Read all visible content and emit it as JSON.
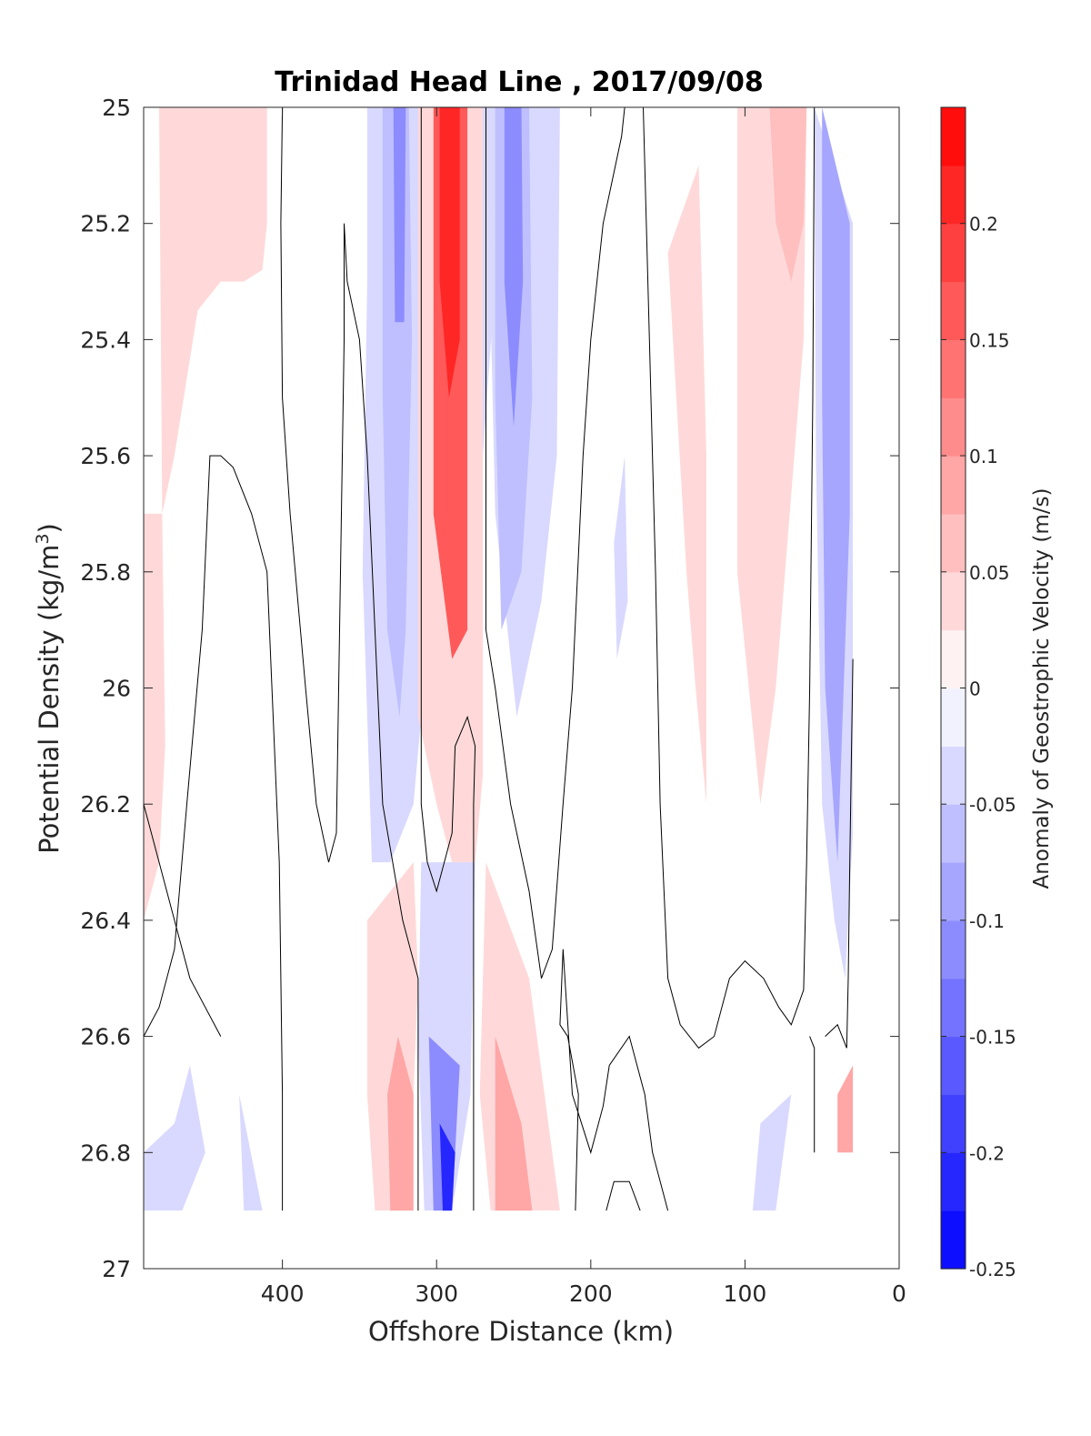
{
  "chart_data": {
    "type": "heatmap",
    "title": "Trinidad Head Line , 2017/09/08",
    "xlabel": "Offshore Distance (km)",
    "ylabel_main": "Potential Density (kg/m",
    "ylabel_sup": "3",
    "ylabel_close": ")",
    "xlim": [
      490,
      0
    ],
    "ylim": [
      25,
      27
    ],
    "x_ticks": [
      "400",
      "300",
      "200",
      "100",
      "0"
    ],
    "x_tick_values": [
      400,
      300,
      200,
      100,
      0
    ],
    "y_ticks": [
      "25",
      "25.2",
      "25.4",
      "25.6",
      "25.8",
      "26",
      "26.2",
      "26.4",
      "26.6",
      "26.8",
      "27"
    ],
    "y_tick_values": [
      25,
      25.2,
      25.4,
      25.6,
      25.8,
      26,
      26.2,
      26.4,
      26.6,
      26.8,
      27
    ],
    "colorbar": {
      "label": "Anomaly of Geostrophic Velocity (m/s)",
      "range": [
        -0.25,
        0.25
      ],
      "ticks": [
        "0.2",
        "0.15",
        "0.1",
        "0.05",
        "0",
        "-0.05",
        "-0.1",
        "-0.15",
        "-0.2",
        "-0.25"
      ],
      "tick_values": [
        0.2,
        0.15,
        0.1,
        0.05,
        0,
        -0.05,
        -0.1,
        -0.15,
        -0.2,
        -0.25
      ],
      "levels": 20,
      "colormap": "blue-white-red",
      "color_min": "#0000ff",
      "color_max": "#ff0000"
    },
    "regions": [
      {
        "value": 0.03,
        "points": [
          [
            480,
            25.0
          ],
          [
            410,
            25.0
          ],
          [
            410,
            25.2
          ],
          [
            413,
            25.28
          ],
          [
            425,
            25.3
          ],
          [
            440,
            25.3
          ],
          [
            455,
            25.35
          ],
          [
            470,
            25.6
          ],
          [
            478,
            25.7
          ]
        ]
      },
      {
        "value": 0.03,
        "points": [
          [
            490,
            25.7
          ],
          [
            478,
            25.7
          ],
          [
            476,
            26.1
          ],
          [
            480,
            26.3
          ],
          [
            490,
            26.4
          ]
        ]
      },
      {
        "value": -0.03,
        "points": [
          [
            345,
            25.0
          ],
          [
            268,
            25.0
          ],
          [
            262,
            25.3
          ],
          [
            270,
            25.6
          ],
          [
            292,
            25.9
          ],
          [
            310,
            26.05
          ],
          [
            315,
            26.2
          ],
          [
            330,
            26.3
          ],
          [
            342,
            26.3
          ],
          [
            348,
            25.8
          ],
          [
            345,
            25.3
          ]
        ]
      },
      {
        "value": -0.07,
        "points": [
          [
            335,
            25.0
          ],
          [
            318,
            25.0
          ],
          [
            316,
            25.4
          ],
          [
            320,
            25.9
          ],
          [
            324,
            26.05
          ],
          [
            332,
            25.9
          ],
          [
            335,
            25.5
          ]
        ]
      },
      {
        "value": -0.12,
        "points": [
          [
            328,
            25.0
          ],
          [
            320,
            25.0
          ],
          [
            321,
            25.37
          ],
          [
            327,
            25.37
          ]
        ]
      },
      {
        "value": 0.05,
        "points": [
          [
            312,
            25.0
          ],
          [
            270,
            25.0
          ],
          [
            270,
            26.15
          ],
          [
            275,
            26.3
          ],
          [
            290,
            26.3
          ],
          [
            300,
            26.2
          ],
          [
            312,
            26.05
          ]
        ]
      },
      {
        "value": 0.15,
        "points": [
          [
            302,
            25.0
          ],
          [
            280,
            25.0
          ],
          [
            280,
            25.9
          ],
          [
            290,
            25.95
          ],
          [
            302,
            25.7
          ]
        ]
      },
      {
        "value": 0.22,
        "points": [
          [
            298,
            25.0
          ],
          [
            285,
            25.0
          ],
          [
            285,
            25.4
          ],
          [
            292,
            25.5
          ],
          [
            298,
            25.3
          ]
        ]
      },
      {
        "value": -0.03,
        "points": [
          [
            268,
            25.0
          ],
          [
            220,
            25.0
          ],
          [
            222,
            25.6
          ],
          [
            232,
            25.85
          ],
          [
            248,
            26.05
          ],
          [
            262,
            25.7
          ]
        ]
      },
      {
        "value": -0.07,
        "points": [
          [
            262,
            25.0
          ],
          [
            240,
            25.0
          ],
          [
            238,
            25.5
          ],
          [
            245,
            25.8
          ],
          [
            258,
            25.9
          ],
          [
            262,
            25.5
          ]
        ]
      },
      {
        "value": -0.12,
        "points": [
          [
            256,
            25.0
          ],
          [
            245,
            25.0
          ],
          [
            244,
            25.3
          ],
          [
            250,
            25.55
          ],
          [
            256,
            25.3
          ]
        ]
      },
      {
        "value": -0.03,
        "points": [
          [
            178,
            25.6
          ],
          [
            185,
            25.75
          ],
          [
            183,
            25.95
          ],
          [
            176,
            25.85
          ]
        ]
      },
      {
        "value": 0.03,
        "points": [
          [
            150,
            25.25
          ],
          [
            130,
            25.1
          ],
          [
            125,
            25.6
          ],
          [
            125,
            26.2
          ],
          [
            132,
            26.0
          ],
          [
            138,
            25.8
          ]
        ]
      },
      {
        "value": 0.03,
        "points": [
          [
            105,
            25.0
          ],
          [
            60,
            25.0
          ],
          [
            62,
            25.4
          ],
          [
            80,
            26.0
          ],
          [
            90,
            26.2
          ],
          [
            105,
            25.8
          ]
        ]
      },
      {
        "value": 0.07,
        "points": [
          [
            84,
            25.0
          ],
          [
            60,
            25.0
          ],
          [
            62,
            25.2
          ],
          [
            70,
            25.3
          ],
          [
            80,
            25.2
          ]
        ]
      },
      {
        "value": -0.03,
        "points": [
          [
            55,
            25.0
          ],
          [
            30,
            25.2
          ],
          [
            30,
            26.25
          ],
          [
            35,
            26.5
          ],
          [
            42,
            26.4
          ],
          [
            50,
            26.2
          ],
          [
            54,
            25.6
          ]
        ]
      },
      {
        "value": -0.08,
        "points": [
          [
            50,
            25.0
          ],
          [
            32,
            25.2
          ],
          [
            32,
            25.7
          ],
          [
            40,
            26.3
          ],
          [
            48,
            26.0
          ],
          [
            50,
            25.5
          ]
        ]
      },
      {
        "value": 0.05,
        "points": [
          [
            345,
            26.4
          ],
          [
            315,
            26.3
          ],
          [
            312,
            26.5
          ],
          [
            318,
            26.9
          ],
          [
            340,
            26.9
          ],
          [
            345,
            26.7
          ]
        ]
      },
      {
        "value": 0.1,
        "points": [
          [
            325,
            26.6
          ],
          [
            315,
            26.7
          ],
          [
            315,
            26.9
          ],
          [
            330,
            26.9
          ],
          [
            332,
            26.7
          ]
        ]
      },
      {
        "value": -0.05,
        "points": [
          [
            310,
            26.3
          ],
          [
            275,
            26.3
          ],
          [
            278,
            26.7
          ],
          [
            290,
            26.9
          ],
          [
            308,
            26.9
          ],
          [
            312,
            26.6
          ]
        ]
      },
      {
        "value": -0.12,
        "points": [
          [
            305,
            26.6
          ],
          [
            285,
            26.65
          ],
          [
            290,
            26.9
          ],
          [
            302,
            26.9
          ]
        ]
      },
      {
        "value": -0.2,
        "points": [
          [
            298,
            26.75
          ],
          [
            288,
            26.8
          ],
          [
            290,
            26.9
          ],
          [
            296,
            26.9
          ]
        ]
      },
      {
        "value": 0.05,
        "points": [
          [
            268,
            26.3
          ],
          [
            240,
            26.5
          ],
          [
            220,
            26.9
          ],
          [
            265,
            26.9
          ],
          [
            272,
            26.7
          ]
        ]
      },
      {
        "value": 0.1,
        "points": [
          [
            262,
            26.6
          ],
          [
            245,
            26.75
          ],
          [
            238,
            26.9
          ],
          [
            262,
            26.9
          ]
        ]
      },
      {
        "value": -0.05,
        "points": [
          [
            490,
            26.8
          ],
          [
            470,
            26.75
          ],
          [
            460,
            26.65
          ],
          [
            450,
            26.8
          ],
          [
            465,
            26.9
          ],
          [
            490,
            26.9
          ]
        ]
      },
      {
        "value": -0.05,
        "points": [
          [
            428,
            26.7
          ],
          [
            413,
            26.9
          ],
          [
            425,
            26.9
          ]
        ]
      },
      {
        "value": -0.05,
        "points": [
          [
            90,
            26.75
          ],
          [
            70,
            26.7
          ],
          [
            80,
            26.9
          ],
          [
            95,
            26.9
          ]
        ]
      },
      {
        "value": 0.08,
        "points": [
          [
            40,
            26.7
          ],
          [
            30,
            26.65
          ],
          [
            30,
            26.8
          ],
          [
            40,
            26.8
          ]
        ]
      }
    ],
    "zero_contours": [
      [
        [
          400,
          25.0
        ],
        [
          401,
          25.2
        ],
        [
          400,
          25.5
        ],
        [
          395,
          25.7
        ],
        [
          385,
          26.0
        ],
        [
          378,
          26.2
        ],
        [
          370,
          26.3
        ],
        [
          365,
          26.25
        ],
        [
          360,
          25.4
        ],
        [
          360,
          25.2
        ],
        [
          358,
          25.3
        ],
        [
          350,
          25.4
        ],
        [
          345,
          25.6
        ],
        [
          340,
          25.9
        ],
        [
          335,
          26.2
        ],
        [
          322,
          26.4
        ],
        [
          312,
          26.5
        ],
        [
          312,
          26.9
        ]
      ],
      [
        [
          310,
          25.0
        ],
        [
          310,
          26.2
        ],
        [
          306,
          26.3
        ],
        [
          300,
          26.35
        ],
        [
          290,
          26.25
        ],
        [
          288,
          26.1
        ],
        [
          280,
          26.05
        ],
        [
          275,
          26.1
        ],
        [
          276,
          26.2
        ],
        [
          276,
          26.9
        ]
      ],
      [
        [
          268,
          25.0
        ],
        [
          268,
          25.9
        ],
        [
          262,
          26.0
        ],
        [
          252,
          26.2
        ],
        [
          240,
          26.35
        ],
        [
          232,
          26.5
        ],
        [
          225,
          26.45
        ],
        [
          218,
          26.2
        ],
        [
          212,
          26.0
        ],
        [
          205,
          25.6
        ],
        [
          200,
          25.4
        ],
        [
          192,
          25.2
        ],
        [
          180,
          25.05
        ],
        [
          178,
          25.0
        ]
      ],
      [
        [
          166,
          25.0
        ],
        [
          162,
          25.4
        ],
        [
          158,
          25.8
        ],
        [
          155,
          26.2
        ],
        [
          150,
          26.5
        ],
        [
          142,
          26.58
        ],
        [
          130,
          26.62
        ],
        [
          120,
          26.6
        ],
        [
          110,
          26.5
        ],
        [
          100,
          26.47
        ],
        [
          88,
          26.5
        ],
        [
          78,
          26.55
        ],
        [
          70,
          26.58
        ],
        [
          62,
          26.52
        ],
        [
          60,
          26.3
        ],
        [
          58,
          26.0
        ],
        [
          56,
          25.5
        ],
        [
          55,
          25.0
        ]
      ],
      [
        [
          440,
          26.6
        ],
        [
          460,
          26.5
        ],
        [
          470,
          26.4
        ],
        [
          480,
          26.3
        ],
        [
          490,
          26.2
        ]
      ],
      [
        [
          490,
          26.6
        ],
        [
          480,
          26.55
        ],
        [
          470,
          26.45
        ],
        [
          462,
          26.2
        ],
        [
          452,
          25.9
        ],
        [
          447,
          25.6
        ],
        [
          440,
          25.6
        ],
        [
          432,
          25.62
        ],
        [
          420,
          25.7
        ],
        [
          410,
          25.8
        ],
        [
          402,
          26.3
        ],
        [
          400,
          26.7
        ],
        [
          400,
          26.9
        ]
      ],
      [
        [
          210,
          26.9
        ],
        [
          208,
          26.7
        ],
        [
          215,
          26.6
        ],
        [
          220,
          26.58
        ],
        [
          218,
          26.45
        ],
        [
          212,
          26.7
        ],
        [
          200,
          26.8
        ],
        [
          192,
          26.72
        ],
        [
          188,
          26.65
        ],
        [
          175,
          26.6
        ],
        [
          165,
          26.7
        ],
        [
          160,
          26.8
        ],
        [
          150,
          26.9
        ]
      ],
      [
        [
          48,
          26.6
        ],
        [
          40,
          26.58
        ],
        [
          34,
          26.62
        ],
        [
          33,
          26.5
        ],
        [
          32,
          26.3
        ],
        [
          30,
          25.95
        ]
      ],
      [
        [
          190,
          26.9
        ],
        [
          185,
          26.85
        ],
        [
          175,
          26.85
        ],
        [
          168,
          26.9
        ]
      ],
      [
        [
          58,
          26.6
        ],
        [
          55,
          26.62
        ],
        [
          55,
          26.8
        ]
      ]
    ]
  }
}
